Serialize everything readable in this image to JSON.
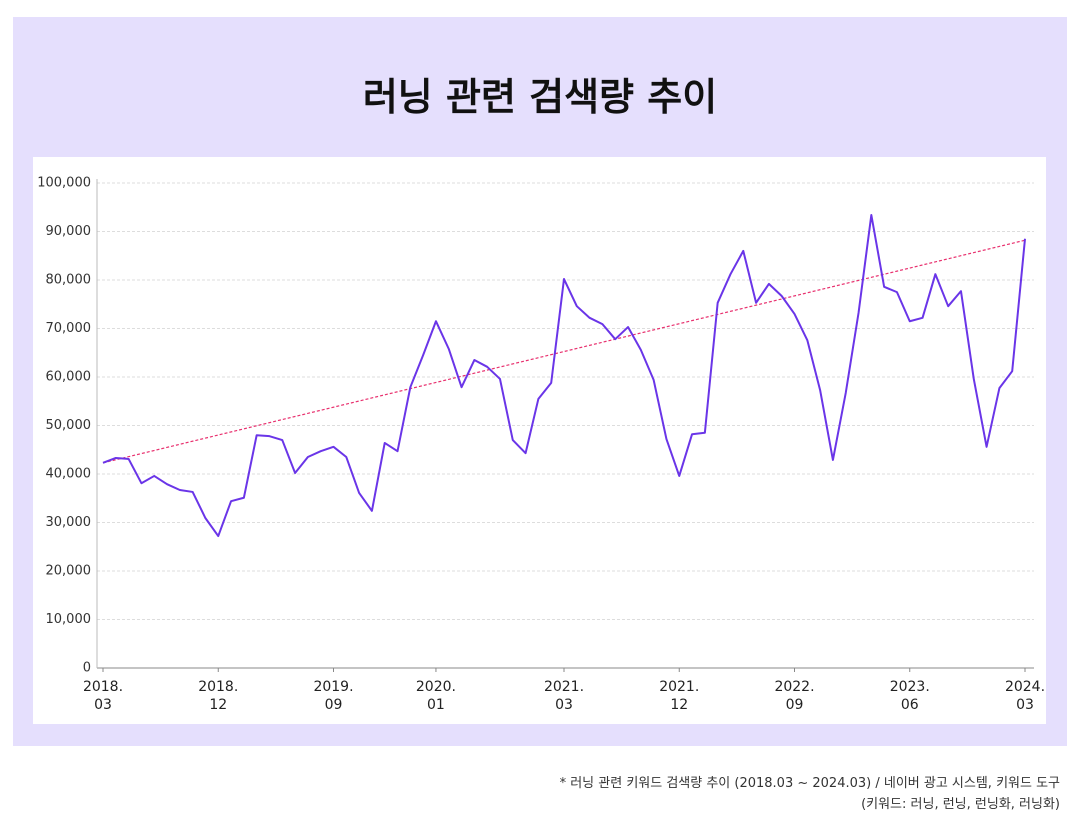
{
  "chart_data": {
    "type": "line",
    "title": "러닝 관련 검색량 추이",
    "categories": [
      "2018.\n03",
      null,
      null,
      null,
      null,
      null,
      null,
      null,
      null,
      "2018.\n12",
      null,
      null,
      null,
      null,
      null,
      null,
      null,
      null,
      "2019.\n09",
      null,
      null,
      null,
      null,
      null,
      null,
      null,
      "2020.\n01",
      null,
      null,
      null,
      null,
      null,
      null,
      null,
      null,
      null,
      "2021.\n03",
      null,
      null,
      null,
      null,
      null,
      null,
      null,
      null,
      "2021.\n12",
      null,
      null,
      null,
      null,
      null,
      null,
      null,
      null,
      "2022.\n09",
      null,
      null,
      null,
      null,
      null,
      null,
      null,
      null,
      "2023.\n06",
      null,
      null,
      null,
      null,
      null,
      null,
      null,
      null,
      "2024.\n03"
    ],
    "series": [
      {
        "color": "#6a35e8",
        "values": [
          42300,
          43300,
          43100,
          38100,
          39600,
          37900,
          36700,
          36300,
          30900,
          27200,
          34400,
          35100,
          48000,
          47800,
          47000,
          40200,
          43500,
          44700,
          45600,
          43500,
          36100,
          32400,
          46400,
          44700,
          57900,
          64500,
          71500,
          65800,
          57900,
          63500,
          62100,
          59600,
          47000,
          44300,
          55500,
          58800,
          80200,
          74600,
          72200,
          70900,
          67800,
          70300,
          65600,
          59400,
          47200,
          39600,
          48200,
          48500,
          75300,
          81200,
          86000,
          75300,
          79200,
          76700,
          73000,
          67600,
          57300,
          42900,
          56700,
          73200,
          93400,
          78600,
          77500,
          71500,
          72200,
          81200,
          74600,
          77700,
          59600,
          45600,
          57700,
          61200,
          88500
        ]
      }
    ],
    "trend_line": {
      "color": "#e8306e",
      "start": 42300,
      "end": 88200
    },
    "ylim": [
      0,
      100000
    ],
    "yticks": [
      0,
      {
        "value": 10000,
        "label": "10,000"
      },
      {
        "value": 20000,
        "label": "20,000"
      },
      {
        "value": 30000,
        "label": "30,000"
      },
      {
        "value": 40000,
        "label": "40,000"
      },
      {
        "value": 50000,
        "label": "50,000"
      },
      {
        "value": 60000,
        "label": "60,000"
      },
      {
        "value": 70000,
        "label": "70,000"
      },
      {
        "value": 80000,
        "label": "80,000"
      },
      {
        "value": 90000,
        "label": "90,000"
      },
      {
        "value": 100000,
        "label": "100,000"
      }
    ],
    "grid": true,
    "source_note": "* 러닝 관련 키워드 검색량 추이 (2018.03 ~ 2024.03) / 네이버 광고 시스템, 키워드 도구",
    "keyword_note": "(키워드: 러닝, 런닝, 런닝화, 러닝화)"
  }
}
